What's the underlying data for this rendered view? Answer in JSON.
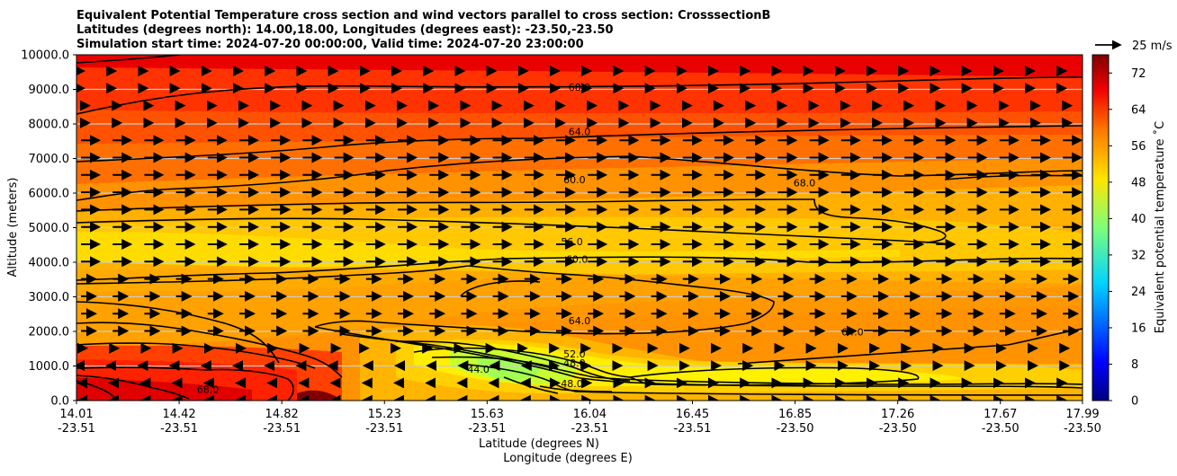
{
  "chart_data": {
    "type": "cross-section contour (filled) with wind vectors",
    "title_lines": [
      "Equivalent Potential Temperature cross section and wind vectors parallel to cross section: CrosssectionB",
      "Latitudes (degrees north): 14.00,18.00, Longitudes (degrees east): -23.50,-23.50",
      "Simulation start time: 2024-07-20 00:00:00, Valid time: 2024-07-20 23:00:00"
    ],
    "xlabel_line1": "Latitude (degrees N)",
    "xlabel_line2": "Longitude (degrees E)",
    "ylabel": "Altitude (meters)",
    "x_ticks": [
      {
        "lat": "14.01",
        "lon": "-23.51"
      },
      {
        "lat": "14.42",
        "lon": "-23.51"
      },
      {
        "lat": "14.82",
        "lon": "-23.51"
      },
      {
        "lat": "15.23",
        "lon": "-23.51"
      },
      {
        "lat": "15.63",
        "lon": "-23.51"
      },
      {
        "lat": "16.04",
        "lon": "-23.51"
      },
      {
        "lat": "16.45",
        "lon": "-23.51"
      },
      {
        "lat": "16.85",
        "lon": "-23.50"
      },
      {
        "lat": "17.26",
        "lon": "-23.50"
      },
      {
        "lat": "17.67",
        "lon": "-23.50"
      },
      {
        "lat": "17.99",
        "lon": "-23.50"
      }
    ],
    "y_ticks": [
      "0.0",
      "1000.0",
      "2000.0",
      "3000.0",
      "4000.0",
      "5000.0",
      "6000.0",
      "7000.0",
      "8000.0",
      "9000.0",
      "10000.0"
    ],
    "ylim": [
      0,
      10000
    ],
    "xlim": [
      14.01,
      17.99
    ],
    "grid": "horizontal",
    "colorbar": {
      "label": "Equivalent potential temperature ˚C",
      "range": [
        0,
        76
      ],
      "ticks": [
        "0",
        "8",
        "16",
        "24",
        "32",
        "40",
        "48",
        "56",
        "64",
        "72"
      ],
      "colormap": "jet"
    },
    "quiver_key": "25 m/s",
    "contour_labels": [
      {
        "text": "68.0",
        "lat": 16.0,
        "alt": 9050
      },
      {
        "text": "64.0",
        "lat": 16.0,
        "alt": 7770
      },
      {
        "text": "60.0",
        "lat": 15.98,
        "alt": 6380
      },
      {
        "text": "56.0",
        "lat": 15.97,
        "alt": 4580
      },
      {
        "text": "60.0",
        "lat": 15.99,
        "alt": 4080
      },
      {
        "text": "64.0",
        "lat": 16.0,
        "alt": 2300
      },
      {
        "text": "52.0",
        "lat": 15.98,
        "alt": 1340
      },
      {
        "text": "48.0",
        "lat": 15.98,
        "alt": 1080
      },
      {
        "text": "48.0",
        "lat": 15.97,
        "alt": 480
      },
      {
        "text": "44.0",
        "lat": 15.6,
        "alt": 900
      },
      {
        "text": "68.0",
        "lat": 14.53,
        "alt": 310
      },
      {
        "text": "68.0",
        "lat": 16.89,
        "alt": 6280
      },
      {
        "text": "64.0",
        "lat": 17.08,
        "alt": 1980
      }
    ],
    "palette": [
      "#7f0000",
      "#e00000",
      "#ff3000",
      "#ff6a00",
      "#ffa000",
      "#ffd200",
      "#b4ff40",
      "#00e0ff",
      "#0000ff",
      "#00007f"
    ]
  }
}
